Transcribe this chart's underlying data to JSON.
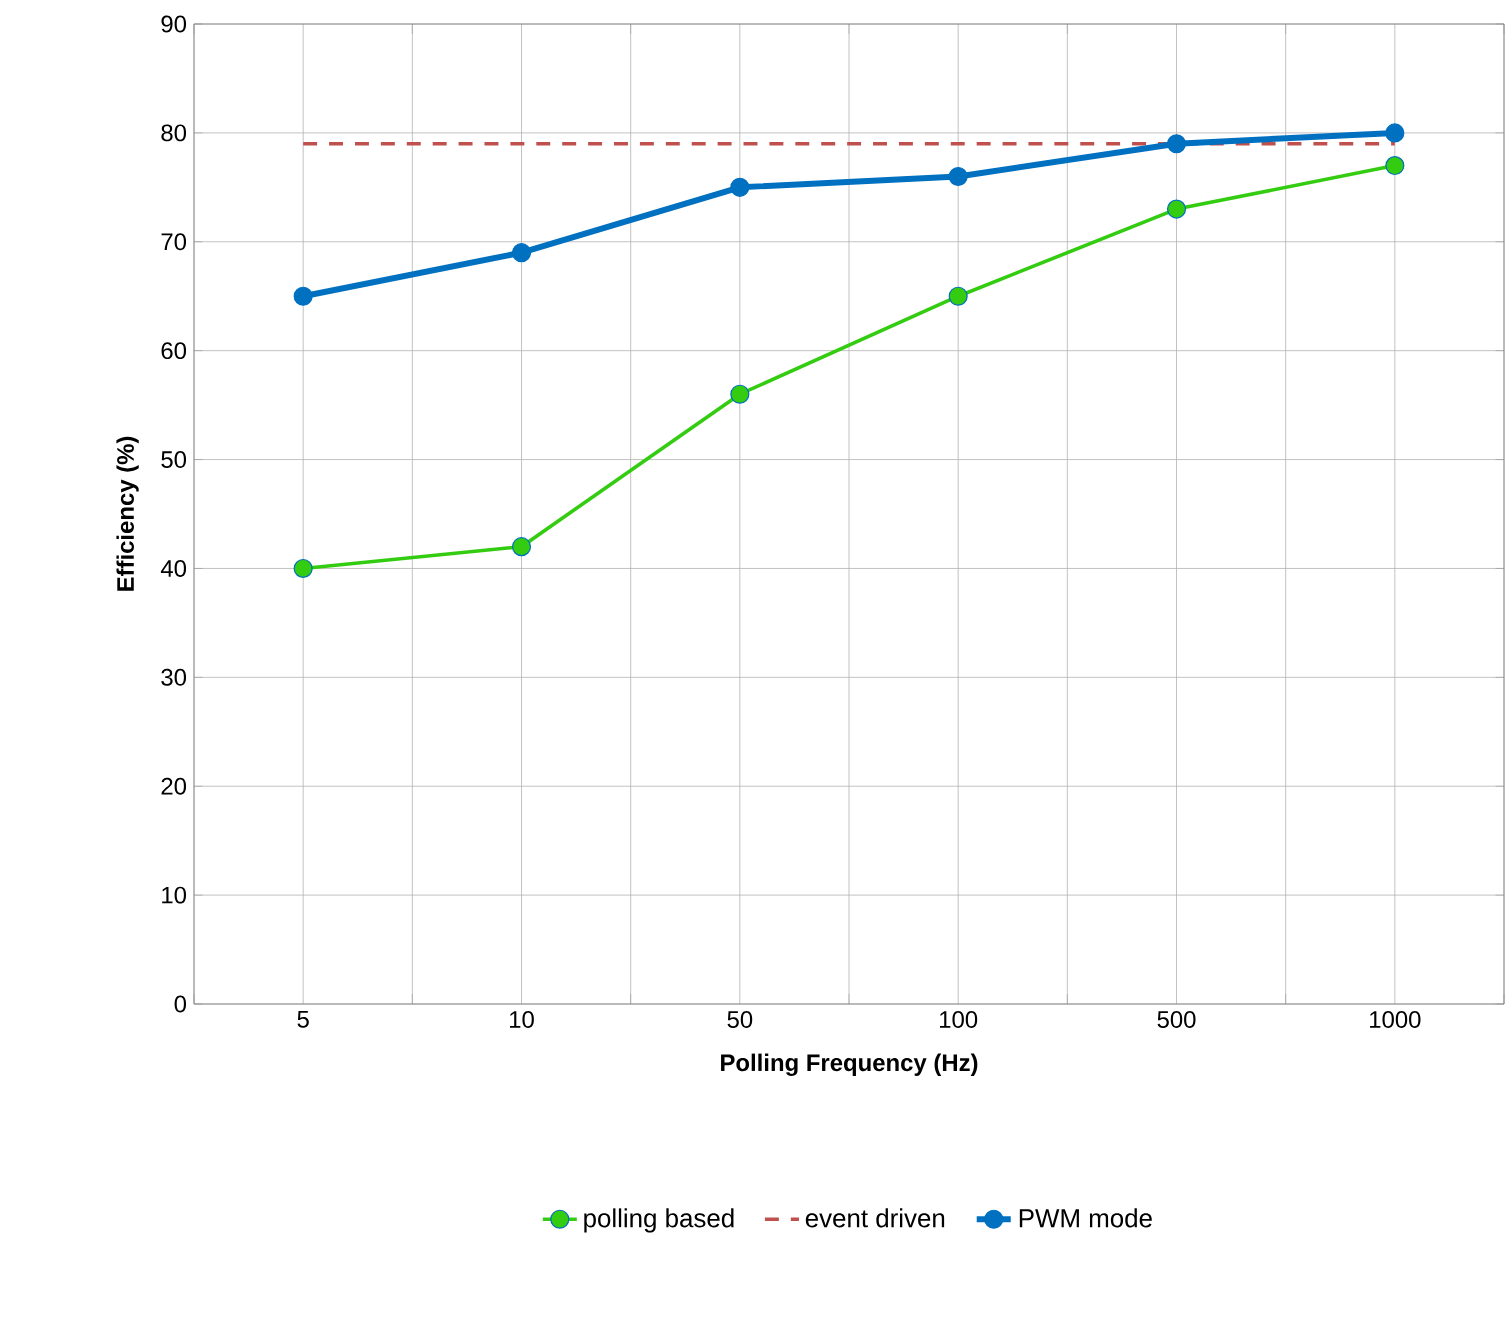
{
  "chart_data": {
    "type": "line",
    "xlabel": "Polling Frequency (Hz)",
    "ylabel": "Efficiency  (%)",
    "categories": [
      "5",
      "10",
      "50",
      "100",
      "500",
      "1000"
    ],
    "series": [
      {
        "name": "polling based",
        "color": "#33cc11",
        "values": [
          40,
          42,
          56,
          65,
          73,
          77
        ],
        "marker": "circle",
        "line_style": "solid"
      },
      {
        "name": "event driven",
        "color": "#c0504d",
        "values": [
          79,
          79,
          79,
          79,
          79,
          79
        ],
        "marker": "none",
        "line_style": "dashed"
      },
      {
        "name": "PWM mode",
        "color": "#0070c0",
        "values": [
          65,
          69,
          75,
          76,
          79,
          80
        ],
        "marker": "circle",
        "line_style": "solid"
      }
    ],
    "ylim": [
      0,
      90
    ],
    "yticks": [
      0,
      10,
      20,
      30,
      40,
      50,
      60,
      70,
      80,
      90
    ],
    "grid": true,
    "legend": "bottom"
  }
}
